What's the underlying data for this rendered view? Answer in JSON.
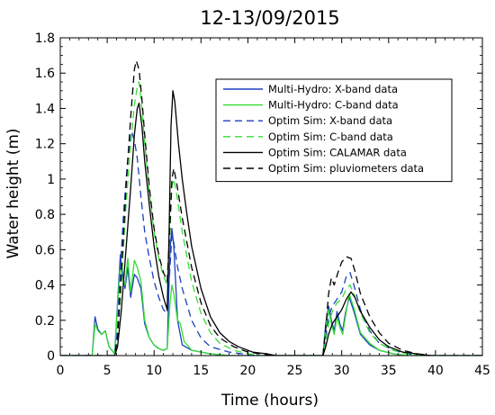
{
  "chart_data": {
    "type": "line",
    "title": "12-13/09/2015",
    "xlabel": "Time (hours)",
    "ylabel": "Water height (m)",
    "xlim": [
      0,
      45
    ],
    "ylim": [
      0,
      1.8
    ],
    "xticks": [
      0,
      5,
      10,
      15,
      20,
      25,
      30,
      35,
      40,
      45
    ],
    "yticks": [
      0,
      0.2,
      0.4,
      0.6,
      0.8,
      1,
      1.2,
      1.4,
      1.6,
      1.8
    ],
    "xtick_labels": [
      "0",
      "5",
      "10",
      "15",
      "20",
      "25",
      "30",
      "35",
      "40",
      "45"
    ],
    "ytick_labels": [
      "0",
      "0.2",
      "0.4",
      "0.6",
      "0.8",
      "1",
      "1.2",
      "1.4",
      "1.6",
      "1.8"
    ],
    "grid": false,
    "legend_position": "top-right",
    "series": [
      {
        "name": "Multi-Hydro: X-band data",
        "color": "#1f3fbf",
        "dash": "solid",
        "points": [
          [
            0,
            0
          ],
          [
            3.4,
            0
          ],
          [
            3.7,
            0.22
          ],
          [
            4.0,
            0.15
          ],
          [
            4.4,
            0.12
          ],
          [
            4.8,
            0.14
          ],
          [
            5.2,
            0.05
          ],
          [
            5.8,
            0.01
          ],
          [
            6.1,
            0.3
          ],
          [
            6.4,
            0.57
          ],
          [
            6.6,
            0.48
          ],
          [
            6.9,
            0.38
          ],
          [
            7.2,
            0.5
          ],
          [
            7.5,
            0.33
          ],
          [
            7.9,
            0.46
          ],
          [
            8.2,
            0.44
          ],
          [
            8.6,
            0.38
          ],
          [
            9.0,
            0.18
          ],
          [
            9.5,
            0.1
          ],
          [
            10.0,
            0.06
          ],
          [
            10.5,
            0.04
          ],
          [
            11.0,
            0.03
          ],
          [
            11.4,
            0.04
          ],
          [
            11.7,
            0.6
          ],
          [
            11.9,
            0.72
          ],
          [
            12.1,
            0.62
          ],
          [
            12.5,
            0.2
          ],
          [
            13.0,
            0.06
          ],
          [
            14.0,
            0.03
          ],
          [
            16.0,
            0.01
          ],
          [
            18.0,
            0
          ],
          [
            28.0,
            0
          ],
          [
            28.3,
            0.18
          ],
          [
            28.6,
            0.28
          ],
          [
            28.9,
            0.2
          ],
          [
            29.2,
            0.14
          ],
          [
            29.5,
            0.25
          ],
          [
            29.8,
            0.18
          ],
          [
            30.1,
            0.14
          ],
          [
            30.4,
            0.24
          ],
          [
            30.8,
            0.33
          ],
          [
            31.3,
            0.25
          ],
          [
            32.0,
            0.12
          ],
          [
            33.0,
            0.06
          ],
          [
            34.0,
            0.03
          ],
          [
            35.5,
            0.01
          ],
          [
            37.0,
            0
          ],
          [
            45,
            0
          ]
        ]
      },
      {
        "name": "Multi-Hydro: C-band data",
        "color": "#33dd33",
        "dash": "solid",
        "points": [
          [
            0,
            0
          ],
          [
            3.4,
            0
          ],
          [
            3.7,
            0.18
          ],
          [
            4.0,
            0.14
          ],
          [
            4.4,
            0.12
          ],
          [
            4.8,
            0.14
          ],
          [
            5.2,
            0.05
          ],
          [
            5.8,
            0.01
          ],
          [
            6.1,
            0.28
          ],
          [
            6.4,
            0.52
          ],
          [
            6.6,
            0.44
          ],
          [
            6.9,
            0.4
          ],
          [
            7.2,
            0.55
          ],
          [
            7.5,
            0.36
          ],
          [
            7.9,
            0.54
          ],
          [
            8.2,
            0.5
          ],
          [
            8.6,
            0.42
          ],
          [
            9.0,
            0.2
          ],
          [
            9.5,
            0.1
          ],
          [
            10.0,
            0.06
          ],
          [
            10.5,
            0.04
          ],
          [
            11.0,
            0.03
          ],
          [
            11.4,
            0.04
          ],
          [
            11.7,
            0.3
          ],
          [
            11.9,
            0.4
          ],
          [
            12.1,
            0.35
          ],
          [
            12.5,
            0.2
          ],
          [
            12.8,
            0.18
          ],
          [
            13.2,
            0.08
          ],
          [
            14.0,
            0.03
          ],
          [
            16.0,
            0.01
          ],
          [
            18.0,
            0
          ],
          [
            28.0,
            0
          ],
          [
            28.3,
            0.15
          ],
          [
            28.6,
            0.26
          ],
          [
            28.9,
            0.18
          ],
          [
            29.2,
            0.12
          ],
          [
            29.5,
            0.22
          ],
          [
            29.8,
            0.16
          ],
          [
            30.1,
            0.12
          ],
          [
            30.4,
            0.22
          ],
          [
            30.8,
            0.35
          ],
          [
            31.3,
            0.27
          ],
          [
            32.0,
            0.13
          ],
          [
            33.0,
            0.07
          ],
          [
            34.0,
            0.03
          ],
          [
            35.5,
            0.01
          ],
          [
            37.0,
            0
          ],
          [
            45,
            0
          ]
        ]
      },
      {
        "name": "Optim Sim: X-band data",
        "color": "#1f3fbf",
        "dash": "dashed",
        "points": [
          [
            0,
            0
          ],
          [
            5.8,
            0
          ],
          [
            6.1,
            0.15
          ],
          [
            6.4,
            0.5
          ],
          [
            6.8,
            0.85
          ],
          [
            7.2,
            1.12
          ],
          [
            7.6,
            1.27
          ],
          [
            7.9,
            1.22
          ],
          [
            8.2,
            1.12
          ],
          [
            8.6,
            0.9
          ],
          [
            9.0,
            0.7
          ],
          [
            9.5,
            0.55
          ],
          [
            10.0,
            0.42
          ],
          [
            10.5,
            0.33
          ],
          [
            11.0,
            0.26
          ],
          [
            11.4,
            0.24
          ],
          [
            11.7,
            0.5
          ],
          [
            11.9,
            0.68
          ],
          [
            12.1,
            0.64
          ],
          [
            12.5,
            0.5
          ],
          [
            13.0,
            0.38
          ],
          [
            14.0,
            0.2
          ],
          [
            15.0,
            0.1
          ],
          [
            16.0,
            0.05
          ],
          [
            18.0,
            0.02
          ],
          [
            20.0,
            0.005
          ],
          [
            21.0,
            0
          ],
          [
            28.0,
            0
          ],
          [
            28.3,
            0.1
          ],
          [
            28.6,
            0.22
          ],
          [
            29.0,
            0.28
          ],
          [
            29.5,
            0.32
          ],
          [
            30.0,
            0.36
          ],
          [
            30.5,
            0.45
          ],
          [
            30.9,
            0.47
          ],
          [
            31.3,
            0.4
          ],
          [
            32.0,
            0.26
          ],
          [
            33.0,
            0.14
          ],
          [
            34.0,
            0.07
          ],
          [
            35.5,
            0.03
          ],
          [
            37.0,
            0.01
          ],
          [
            38.5,
            0
          ],
          [
            45,
            0
          ]
        ]
      },
      {
        "name": "Optim Sim: C-band data",
        "color": "#33dd33",
        "dash": "dashed",
        "points": [
          [
            0,
            0
          ],
          [
            5.8,
            0
          ],
          [
            6.1,
            0.1
          ],
          [
            6.5,
            0.4
          ],
          [
            7.0,
            0.85
          ],
          [
            7.5,
            1.2
          ],
          [
            7.9,
            1.42
          ],
          [
            8.2,
            1.52
          ],
          [
            8.4,
            1.55
          ],
          [
            8.7,
            1.4
          ],
          [
            9.0,
            1.2
          ],
          [
            9.5,
            0.92
          ],
          [
            10.0,
            0.7
          ],
          [
            10.5,
            0.55
          ],
          [
            11.0,
            0.45
          ],
          [
            11.4,
            0.4
          ],
          [
            11.7,
            0.7
          ],
          [
            11.9,
            0.96
          ],
          [
            12.1,
            1.0
          ],
          [
            12.4,
            0.92
          ],
          [
            13.0,
            0.7
          ],
          [
            14.0,
            0.42
          ],
          [
            15.0,
            0.24
          ],
          [
            16.0,
            0.13
          ],
          [
            17.0,
            0.07
          ],
          [
            18.5,
            0.03
          ],
          [
            20.0,
            0.01
          ],
          [
            21.5,
            0
          ],
          [
            28.0,
            0
          ],
          [
            28.3,
            0.08
          ],
          [
            28.6,
            0.18
          ],
          [
            29.0,
            0.25
          ],
          [
            29.5,
            0.3
          ],
          [
            30.0,
            0.32
          ],
          [
            30.5,
            0.38
          ],
          [
            30.9,
            0.4
          ],
          [
            31.3,
            0.35
          ],
          [
            32.0,
            0.24
          ],
          [
            33.0,
            0.13
          ],
          [
            34.0,
            0.07
          ],
          [
            35.5,
            0.03
          ],
          [
            37.0,
            0.01
          ],
          [
            38.5,
            0
          ],
          [
            45,
            0
          ]
        ]
      },
      {
        "name": "Optim Sim: CALAMAR data",
        "color": "#000000",
        "dash": "solid",
        "points": [
          [
            0,
            0
          ],
          [
            5.8,
            0
          ],
          [
            6.1,
            0.05
          ],
          [
            6.5,
            0.25
          ],
          [
            7.0,
            0.6
          ],
          [
            7.5,
            0.95
          ],
          [
            7.9,
            1.25
          ],
          [
            8.2,
            1.4
          ],
          [
            8.4,
            1.43
          ],
          [
            8.7,
            1.3
          ],
          [
            9.0,
            1.1
          ],
          [
            9.5,
            0.85
          ],
          [
            10.0,
            0.62
          ],
          [
            10.5,
            0.45
          ],
          [
            11.0,
            0.33
          ],
          [
            11.4,
            0.26
          ],
          [
            11.6,
            0.7
          ],
          [
            11.8,
            1.3
          ],
          [
            12.0,
            1.5
          ],
          [
            12.2,
            1.44
          ],
          [
            12.6,
            1.2
          ],
          [
            13.0,
            1.0
          ],
          [
            13.5,
            0.8
          ],
          [
            14.0,
            0.62
          ],
          [
            15.0,
            0.38
          ],
          [
            16.0,
            0.22
          ],
          [
            17.0,
            0.13
          ],
          [
            18.0,
            0.08
          ],
          [
            19.0,
            0.05
          ],
          [
            20.5,
            0.02
          ],
          [
            22.0,
            0.01
          ],
          [
            23.0,
            0
          ],
          [
            28.0,
            0
          ],
          [
            28.3,
            0.05
          ],
          [
            28.6,
            0.12
          ],
          [
            29.0,
            0.18
          ],
          [
            29.5,
            0.22
          ],
          [
            30.0,
            0.26
          ],
          [
            30.5,
            0.32
          ],
          [
            31.0,
            0.36
          ],
          [
            31.4,
            0.33
          ],
          [
            32.0,
            0.25
          ],
          [
            33.0,
            0.16
          ],
          [
            34.0,
            0.09
          ],
          [
            35.0,
            0.05
          ],
          [
            36.5,
            0.02
          ],
          [
            38.0,
            0.01
          ],
          [
            39.5,
            0
          ],
          [
            45,
            0
          ]
        ]
      },
      {
        "name": "Optim Sim: pluviometers data",
        "color": "#000000",
        "dash": "dashed",
        "points": [
          [
            0,
            0
          ],
          [
            5.8,
            0
          ],
          [
            6.1,
            0.1
          ],
          [
            6.5,
            0.45
          ],
          [
            7.0,
            0.95
          ],
          [
            7.5,
            1.35
          ],
          [
            7.9,
            1.62
          ],
          [
            8.1,
            1.67
          ],
          [
            8.4,
            1.62
          ],
          [
            8.7,
            1.45
          ],
          [
            9.0,
            1.25
          ],
          [
            9.5,
            0.95
          ],
          [
            10.0,
            0.72
          ],
          [
            10.5,
            0.57
          ],
          [
            11.0,
            0.47
          ],
          [
            11.4,
            0.42
          ],
          [
            11.7,
            0.75
          ],
          [
            11.9,
            1.0
          ],
          [
            12.1,
            1.06
          ],
          [
            12.4,
            0.98
          ],
          [
            13.0,
            0.78
          ],
          [
            14.0,
            0.5
          ],
          [
            15.0,
            0.3
          ],
          [
            16.0,
            0.17
          ],
          [
            17.0,
            0.1
          ],
          [
            18.5,
            0.05
          ],
          [
            20.0,
            0.02
          ],
          [
            22.0,
            0.005
          ],
          [
            23.0,
            0
          ],
          [
            28.0,
            0
          ],
          [
            28.3,
            0.15
          ],
          [
            28.6,
            0.35
          ],
          [
            28.9,
            0.44
          ],
          [
            29.2,
            0.4
          ],
          [
            29.6,
            0.47
          ],
          [
            30.0,
            0.53
          ],
          [
            30.5,
            0.56
          ],
          [
            31.0,
            0.55
          ],
          [
            31.4,
            0.48
          ],
          [
            32.0,
            0.35
          ],
          [
            33.0,
            0.22
          ],
          [
            34.0,
            0.13
          ],
          [
            35.0,
            0.07
          ],
          [
            36.5,
            0.03
          ],
          [
            38.0,
            0.01
          ],
          [
            39.5,
            0
          ],
          [
            45,
            0
          ]
        ]
      }
    ]
  }
}
